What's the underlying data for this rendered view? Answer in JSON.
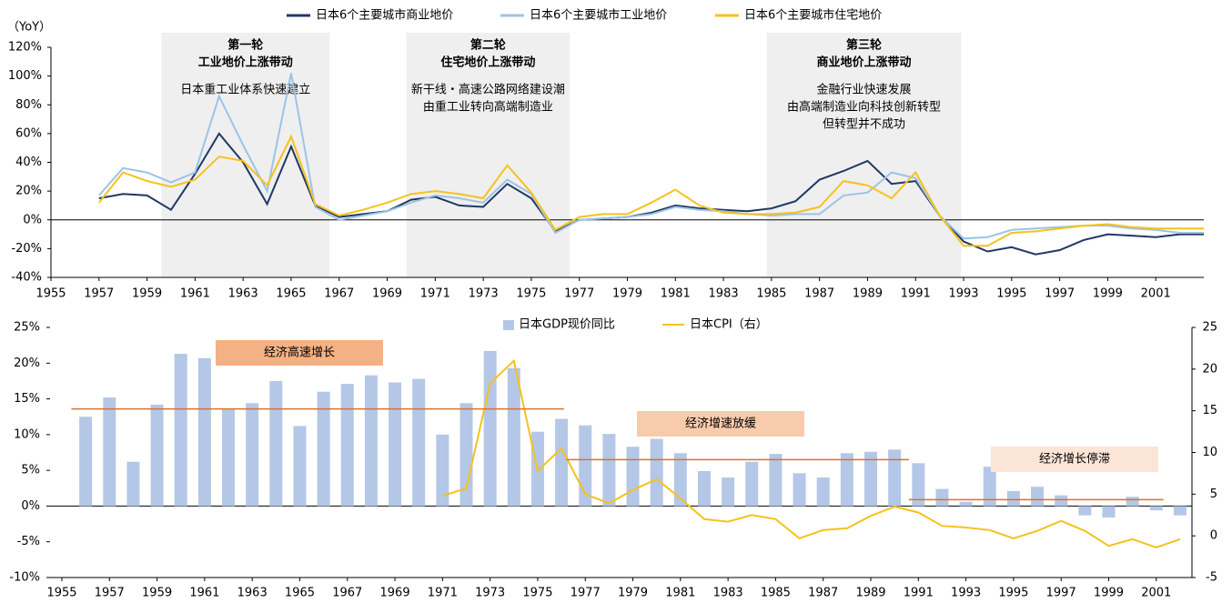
{
  "chart_data": [
    {
      "type": "line",
      "y_label": "（YoY）",
      "x": [
        1957,
        1958,
        1959,
        1960,
        1961,
        1962,
        1963,
        1964,
        1965,
        1966,
        1967,
        1968,
        1969,
        1970,
        1971,
        1972,
        1973,
        1974,
        1975,
        1976,
        1977,
        1978,
        1979,
        1980,
        1981,
        1982,
        1983,
        1984,
        1985,
        1986,
        1987,
        1988,
        1989,
        1990,
        1991,
        1992,
        1993,
        1994,
        1995,
        1996,
        1997,
        1998,
        1999,
        2000,
        2001,
        2002,
        2003
      ],
      "series": [
        {
          "name": "日本6个主要城市商业地价",
          "color": "#1f3864",
          "values": [
            15,
            18,
            17,
            7,
            32,
            60,
            40,
            11,
            51,
            10,
            2,
            4,
            6,
            14,
            16,
            10,
            9,
            25,
            15,
            -8,
            0,
            1,
            2,
            5,
            10,
            8,
            7,
            6,
            8,
            13,
            28,
            34,
            41,
            25,
            27,
            3,
            -15,
            -22,
            -19,
            -24,
            -21,
            -14,
            -10,
            -11,
            -12,
            -10,
            -10
          ]
        },
        {
          "name": "日本6个主要城市工业地价",
          "color": "#9dc3e6",
          "values": [
            17,
            36,
            33,
            26,
            33,
            86,
            52,
            20,
            102,
            9,
            0,
            3,
            6,
            12,
            17,
            15,
            12,
            28,
            18,
            -9,
            0,
            1,
            2,
            4,
            9,
            7,
            6,
            4,
            3,
            4,
            4,
            17,
            19,
            33,
            29,
            3,
            -13,
            -12,
            -7,
            -6,
            -5,
            -4,
            -4,
            -6,
            -7,
            -9,
            -9
          ]
        },
        {
          "name": "日本6个主要城市住宅地价",
          "color": "#f5c21b",
          "values": [
            12,
            33,
            27,
            23,
            28,
            44,
            41,
            24,
            58,
            11,
            3,
            7,
            12,
            18,
            20,
            18,
            15,
            38,
            19,
            -7,
            2,
            4,
            4,
            12,
            21,
            10,
            5,
            4,
            4,
            5,
            9,
            27,
            24,
            15,
            33,
            3,
            -18,
            -18,
            -9,
            -8,
            -6,
            -4,
            -3,
            -5,
            -6,
            -6,
            -6
          ]
        }
      ],
      "xlim": [
        1955,
        2003
      ],
      "xticks": [
        1955,
        1957,
        1959,
        1961,
        1963,
        1965,
        1967,
        1969,
        1971,
        1973,
        1975,
        1977,
        1979,
        1981,
        1983,
        1985,
        1987,
        1989,
        1991,
        1993,
        1995,
        1997,
        1999,
        2001
      ],
      "ylim": [
        -40,
        120
      ],
      "yticks": [
        {
          "value": 120,
          "label": "120%"
        },
        {
          "value": 100,
          "label": "100%"
        },
        {
          "value": 80,
          "label": "80%"
        },
        {
          "value": 60,
          "label": "60%"
        },
        {
          "value": 40,
          "label": "40%"
        },
        {
          "value": 20,
          "label": "20%"
        },
        {
          "value": 0,
          "label": "0%"
        },
        {
          "value": -20,
          "label": "-20%"
        },
        {
          "value": -40,
          "label": "-40%"
        }
      ],
      "periods": [
        {
          "start": 1959.6,
          "end": 1966.6,
          "title": "第一轮",
          "subtitle": "工业地价上涨带动",
          "text": [
            "日本重工业体系快速建立"
          ]
        },
        {
          "start": 1969.8,
          "end": 1976.6,
          "title": "第二轮",
          "subtitle": "住宅地价上涨带动",
          "text": [
            "新干线・高速公路网络建设潮",
            "由重工业转向高端制造业"
          ]
        },
        {
          "start": 1984.8,
          "end": 1992.9,
          "title": "第三轮",
          "subtitle": "商业地价上涨带动",
          "text": [
            "金融行业快速发展",
            "由高端制造业向科技创新转型",
            "但转型并不成功"
          ]
        }
      ]
    },
    {
      "type": "combo",
      "x": [
        1956,
        1957,
        1958,
        1959,
        1960,
        1961,
        1962,
        1963,
        1964,
        1965,
        1966,
        1967,
        1968,
        1969,
        1970,
        1971,
        1972,
        1973,
        1974,
        1975,
        1976,
        1977,
        1978,
        1979,
        1980,
        1981,
        1982,
        1983,
        1984,
        1985,
        1986,
        1987,
        1988,
        1989,
        1990,
        1991,
        1992,
        1993,
        1994,
        1995,
        1996,
        1997,
        1998,
        1999,
        2000,
        2001,
        2002
      ],
      "series": [
        {
          "name": "日本GDP现价同比",
          "kind": "bar",
          "color": "#b4c7e7",
          "values": [
            12.5,
            15.2,
            6.2,
            14.2,
            21.3,
            20.7,
            13.5,
            14.4,
            17.5,
            11.2,
            16.0,
            17.1,
            18.3,
            17.3,
            17.8,
            10.0,
            14.4,
            21.7,
            19.3,
            10.4,
            12.2,
            11.3,
            10.1,
            8.3,
            9.4,
            7.4,
            4.9,
            4.0,
            6.2,
            7.3,
            4.6,
            4.0,
            7.4,
            7.6,
            7.9,
            6.0,
            2.4,
            0.6,
            5.5,
            2.1,
            2.7,
            1.5,
            -1.3,
            -1.6,
            1.3,
            -0.6,
            -1.3
          ]
        },
        {
          "name": "日本CPI（右）",
          "kind": "line",
          "axis": "y2",
          "color": "#f5c21b",
          "values": [
            null,
            null,
            null,
            null,
            null,
            null,
            null,
            null,
            null,
            null,
            null,
            null,
            null,
            null,
            null,
            4.8,
            5.7,
            18.3,
            21.0,
            7.8,
            10.5,
            5.0,
            3.9,
            5.5,
            6.8,
            4.5,
            2.0,
            1.7,
            2.5,
            2.0,
            -0.3,
            0.7,
            0.9,
            2.4,
            3.5,
            2.8,
            1.2,
            1.0,
            0.7,
            -0.3,
            0.6,
            1.8,
            0.6,
            -1.2,
            -0.4,
            -1.4,
            -0.4
          ]
        }
      ],
      "xlim": [
        1955,
        2002.5
      ],
      "xticks": [
        1955,
        1957,
        1959,
        1961,
        1963,
        1965,
        1967,
        1969,
        1971,
        1973,
        1975,
        1977,
        1979,
        1981,
        1983,
        1985,
        1987,
        1989,
        1991,
        1993,
        1995,
        1997,
        1999,
        2001
      ],
      "ylim": [
        -10,
        25
      ],
      "yticks": [
        {
          "value": 25,
          "label": "25%"
        },
        {
          "value": 20,
          "label": "20%"
        },
        {
          "value": 15,
          "label": "15%"
        },
        {
          "value": 10,
          "label": "10%"
        },
        {
          "value": 5,
          "label": "5%"
        },
        {
          "value": 0,
          "label": "0%"
        },
        {
          "value": -5,
          "label": "-5%"
        },
        {
          "value": -10,
          "label": "-10%"
        }
      ],
      "y2lim": [
        -5,
        25
      ],
      "y2ticks": [
        25,
        20,
        15,
        10,
        5,
        0,
        -5
      ],
      "phases": [
        {
          "label": "经济高速增长",
          "average": 13.6,
          "start": 1955.4,
          "end": 1976.1,
          "color": "#f4b183"
        },
        {
          "label": "经济增速放缓",
          "average": 6.5,
          "start": 1976.2,
          "end": 1990.6,
          "color": "#f8cbad"
        },
        {
          "label": "经济增长停滞",
          "average": 0.9,
          "start": 1990.6,
          "end": 2001.3,
          "color": "#fbe5d6"
        }
      ],
      "average_color": "#e36c2f"
    }
  ]
}
